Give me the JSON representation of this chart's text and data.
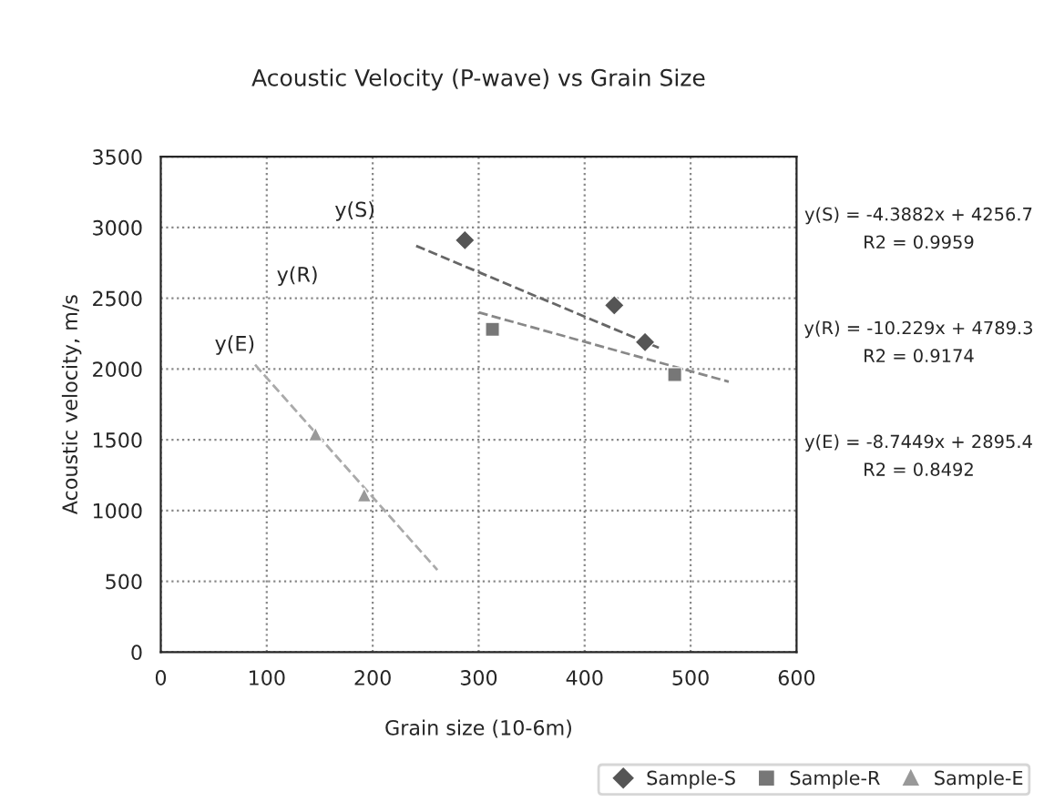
{
  "chart_data": {
    "type": "scatter",
    "title": "Acoustic Velocity (P-wave) vs Grain Size",
    "xlabel": "Grain size (10-6m)",
    "ylabel": "Acoustic velocity, m/s",
    "xlim": [
      0,
      600
    ],
    "xticks": [
      0,
      100,
      200,
      300,
      400,
      500,
      600
    ],
    "ylim": [
      0,
      3500
    ],
    "yticks": [
      0,
      500,
      1000,
      1500,
      2000,
      2500,
      3000,
      3500
    ],
    "grid": true,
    "legend": "bottom right",
    "series": [
      {
        "name": "Sample-S",
        "marker": "diamond",
        "color": "#555555",
        "x": [
          287,
          428,
          457
        ],
        "values": [
          2910,
          2450,
          2190
        ]
      },
      {
        "name": "Sample-R",
        "marker": "square",
        "color": "#777777",
        "x": [
          313,
          485
        ],
        "values": [
          2280,
          1960
        ]
      },
      {
        "name": "Sample-E",
        "marker": "triangle",
        "color": "#999999",
        "x": [
          146,
          192
        ],
        "values": [
          1540,
          1110
        ]
      },
      {
        "type": "line",
        "line_style": "dashed",
        "color": "#666666",
        "x": [
          241,
          470
        ],
        "values": [
          2870,
          2150
        ]
      },
      {
        "type": "line",
        "line_style": "dashed",
        "color": "#888888",
        "x": [
          300,
          536
        ],
        "values": [
          2400,
          1910
        ]
      },
      {
        "type": "line",
        "line_style": "dashed",
        "color": "#aaaaaa",
        "x": [
          89,
          261
        ],
        "values": [
          2030,
          580
        ]
      }
    ],
    "annotations": [
      "y(S)",
      "y(R)",
      "y(E)",
      "y(S) = -4.3882x + 4256.7\nR2 = 0.9959",
      "y(R) = -10.229x + 4789.3\nR2 = 0.9174",
      "y(E) = -8.7449x + 2895.4\nR2 = 0.8492"
    ]
  }
}
